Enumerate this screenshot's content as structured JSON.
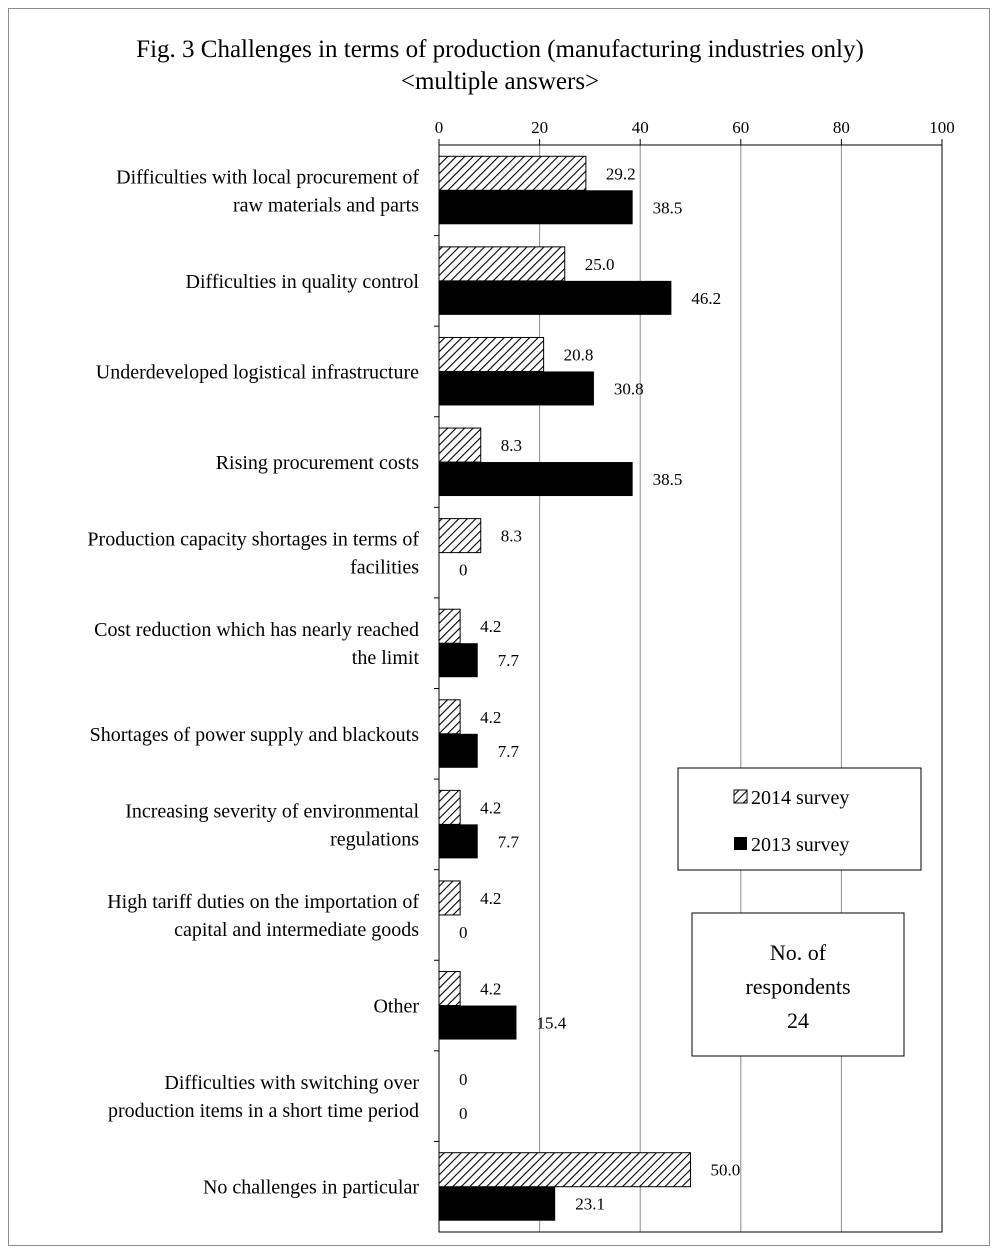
{
  "chart_data": {
    "type": "bar",
    "orientation": "horizontal",
    "title": "Fig. 3  Challenges in terms of production (manufacturing industries only)",
    "subtitle": "<multiple answers>",
    "xlim": [
      0,
      100
    ],
    "x_ticks": [
      "0",
      "20",
      "40",
      "60",
      "80",
      "100"
    ],
    "grid": true,
    "legend_position": "right",
    "categories": [
      [
        "Difficulties with local procurement of",
        "raw materials and parts"
      ],
      [
        "Difficulties in quality control"
      ],
      [
        "Underdeveloped logistical infrastructure"
      ],
      [
        "Rising procurement costs"
      ],
      [
        "Production capacity shortages in terms of",
        "facilities"
      ],
      [
        "Cost reduction which has nearly reached",
        "the limit"
      ],
      [
        "Shortages of power supply and blackouts"
      ],
      [
        "Increasing severity of environmental",
        "regulations"
      ],
      [
        "High tariff duties on the importation of",
        "capital and intermediate goods"
      ],
      [
        "Other"
      ],
      [
        "Difficulties with switching over",
        "production items in a short time period"
      ],
      [
        "No challenges in particular"
      ]
    ],
    "series": [
      {
        "name": "2014 survey",
        "pattern": "hatched",
        "values": [
          29.2,
          25.0,
          20.8,
          8.3,
          8.3,
          4.2,
          4.2,
          4.2,
          4.2,
          4.2,
          0,
          50.0
        ],
        "labels": [
          "29.2",
          "25.0",
          "20.8",
          "8.3",
          "8.3",
          "4.2",
          "4.2",
          "4.2",
          "4.2",
          "4.2",
          "0",
          "50.0"
        ]
      },
      {
        "name": "2013 survey",
        "color": "#000000",
        "values": [
          38.5,
          46.2,
          30.8,
          38.5,
          0,
          7.7,
          7.7,
          7.7,
          0,
          15.4,
          0,
          23.1
        ],
        "labels": [
          "38.5",
          "46.2",
          "30.8",
          "38.5",
          "0",
          "7.7",
          "7.7",
          "7.7",
          "0",
          "15.4",
          "0",
          "23.1"
        ]
      }
    ],
    "respondents_note": [
      "No. of",
      "respondents",
      "24"
    ]
  }
}
